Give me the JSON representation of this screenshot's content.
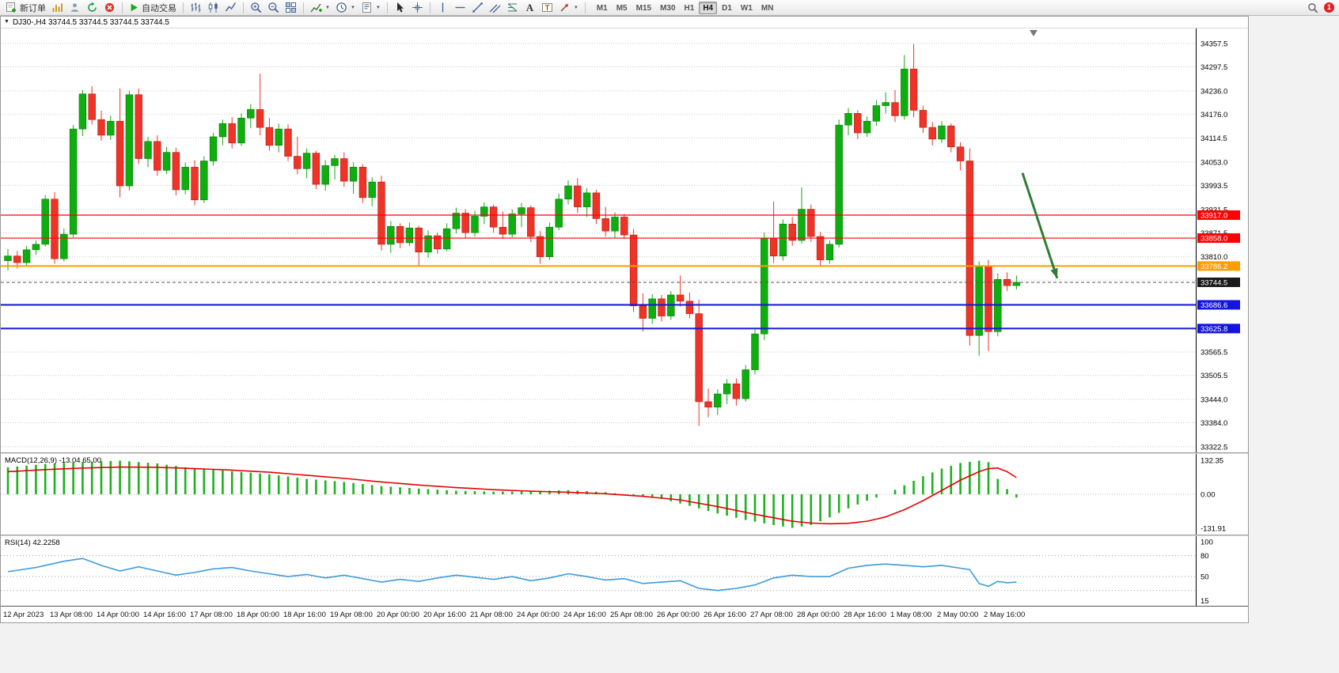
{
  "window": {
    "notification_count": "1"
  },
  "toolbar": {
    "new_order": "新订单",
    "auto_trading": "自动交易",
    "timeframes": [
      "M1",
      "M5",
      "M15",
      "M30",
      "H1",
      "H4",
      "D1",
      "W1",
      "MN"
    ],
    "active_timeframe": "H4"
  },
  "icons": {
    "text_tool": "A",
    "label_tool": "T"
  },
  "chart": {
    "header": "DJ30-,H4  33744.5 33744.5 33744.5 33744.5"
  },
  "chart_data": [
    {
      "type": "candlestick",
      "symbol": "DJ30-",
      "period": "H4",
      "title": "DJ30-,H4",
      "ylim": [
        33308,
        34396
      ],
      "y_ticks": [
        34357.5,
        34297.5,
        34236.0,
        34176.0,
        34114.5,
        34053.0,
        33993.5,
        33931.5,
        33871.5,
        33810.0,
        33750.0,
        33688.5,
        33627.0,
        33565.5,
        33505.5,
        33444.0,
        33384.0,
        33322.5
      ],
      "colors": {
        "up": "#0fae0f",
        "up_dark": "#077707",
        "down": "#ef3327",
        "down_dark": "#a81f16"
      },
      "hlines": [
        {
          "price": 33917.0,
          "label": "33917.0",
          "color": "#ff0000",
          "width": 1.2
        },
        {
          "price": 33858.0,
          "label": "33858.0",
          "color": "#ff0000",
          "width": 1.2
        },
        {
          "price": 33786.2,
          "label": "33786.2",
          "color": "#ff9d00",
          "width": 2
        },
        {
          "price": 33686.6,
          "label": "33686.6",
          "color": "#1414e0",
          "width": 2
        },
        {
          "price": 33625.8,
          "label": "33625.8",
          "color": "#1414e0",
          "width": 2
        }
      ],
      "current_price": {
        "price": 33744.5,
        "label": "33744.5",
        "color": "#1a1a1a"
      },
      "arrow_object": {
        "x1_frac": 0.855,
        "price1": 34025,
        "x2_frac": 0.884,
        "price2": 33755,
        "color": "#2e7d32"
      },
      "time_labels": [
        "12 Apr 2023",
        "13 Apr 08:00",
        "14 Apr 00:00",
        "14 Apr 16:00",
        "17 Apr 08:00",
        "18 Apr 00:00",
        "18 Apr 16:00",
        "19 Apr 08:00",
        "20 Apr 00:00",
        "20 Apr 16:00",
        "21 Apr 08:00",
        "24 Apr 00:00",
        "24 Apr 16:00",
        "25 Apr 08:00",
        "26 Apr 00:00",
        "26 Apr 16:00",
        "27 Apr 08:00",
        "28 Apr 00:00",
        "28 Apr 16:00",
        "1 May 08:00",
        "2 May 00:00",
        "2 May 16:00"
      ],
      "label_step": 5,
      "ohlc": [
        [
          33800,
          33830,
          33775,
          33812
        ],
        [
          33812,
          33825,
          33780,
          33795
        ],
        [
          33795,
          33838,
          33788,
          33828
        ],
        [
          33828,
          33852,
          33815,
          33842
        ],
        [
          33842,
          33968,
          33836,
          33958
        ],
        [
          33958,
          33976,
          33792,
          33805
        ],
        [
          33805,
          33882,
          33798,
          33868
        ],
        [
          33868,
          34148,
          33860,
          34138
        ],
        [
          34138,
          34238,
          34120,
          34228
        ],
        [
          34228,
          34248,
          34150,
          34162
        ],
        [
          34162,
          34185,
          34108,
          34122
        ],
        [
          34122,
          34172,
          34110,
          34158
        ],
        [
          34158,
          34242,
          33962,
          33992
        ],
        [
          33992,
          34236,
          33980,
          34226
        ],
        [
          34226,
          34242,
          34048,
          34062
        ],
        [
          34062,
          34118,
          34040,
          34106
        ],
        [
          34106,
          34122,
          34018,
          34032
        ],
        [
          34032,
          34092,
          34022,
          34078
        ],
        [
          34078,
          34090,
          33968,
          33982
        ],
        [
          33982,
          34052,
          33970,
          34040
        ],
        [
          34040,
          34058,
          33942,
          33956
        ],
        [
          33956,
          34068,
          33948,
          34056
        ],
        [
          34056,
          34128,
          34044,
          34118
        ],
        [
          34118,
          34162,
          34096,
          34152
        ],
        [
          34152,
          34168,
          34088,
          34102
        ],
        [
          34102,
          34178,
          34094,
          34166
        ],
        [
          34166,
          34202,
          34140,
          34188
        ],
        [
          34188,
          34280,
          34122,
          34142
        ],
        [
          34142,
          34166,
          34082,
          34096
        ],
        [
          34096,
          34152,
          34078,
          34138
        ],
        [
          34138,
          34150,
          34056,
          34068
        ],
        [
          34068,
          34118,
          34022,
          34036
        ],
        [
          34036,
          34088,
          34012,
          34076
        ],
        [
          34076,
          34082,
          33984,
          33996
        ],
        [
          33996,
          34058,
          33980,
          34044
        ],
        [
          34044,
          34072,
          34008,
          34062
        ],
        [
          34062,
          34078,
          33990,
          34004
        ],
        [
          34004,
          34052,
          33972,
          34040
        ],
        [
          34040,
          34048,
          33948,
          33962
        ],
        [
          33962,
          34014,
          33940,
          34002
        ],
        [
          34002,
          34018,
          33826,
          33842
        ],
        [
          33842,
          33902,
          33820,
          33888
        ],
        [
          33888,
          33896,
          33832,
          33846
        ],
        [
          33846,
          33898,
          33838,
          33884
        ],
        [
          33884,
          33890,
          33786,
          33822
        ],
        [
          33822,
          33878,
          33808,
          33864
        ],
        [
          33864,
          33872,
          33818,
          33830
        ],
        [
          33830,
          33896,
          33824,
          33882
        ],
        [
          33882,
          33936,
          33870,
          33922
        ],
        [
          33922,
          33932,
          33858,
          33872
        ],
        [
          33872,
          33928,
          33862,
          33914
        ],
        [
          33914,
          33950,
          33894,
          33938
        ],
        [
          33938,
          33944,
          33872,
          33886
        ],
        [
          33886,
          33926,
          33856,
          33868
        ],
        [
          33868,
          33932,
          33860,
          33920
        ],
        [
          33920,
          33948,
          33886,
          33936
        ],
        [
          33936,
          33942,
          33848,
          33862
        ],
        [
          33862,
          33876,
          33792,
          33810
        ],
        [
          33810,
          33898,
          33802,
          33886
        ],
        [
          33886,
          33972,
          33878,
          33958
        ],
        [
          33958,
          34006,
          33944,
          33992
        ],
        [
          33992,
          34012,
          33922,
          33938
        ],
        [
          33938,
          33986,
          33912,
          33974
        ],
        [
          33974,
          33982,
          33894,
          33908
        ],
        [
          33908,
          33938,
          33862,
          33876
        ],
        [
          33876,
          33924,
          33858,
          33912
        ],
        [
          33912,
          33920,
          33856,
          33866
        ],
        [
          33866,
          33882,
          33668,
          33684
        ],
        [
          33684,
          33716,
          33618,
          33652
        ],
        [
          33652,
          33714,
          33638,
          33702
        ],
        [
          33702,
          33712,
          33644,
          33658
        ],
        [
          33658,
          33722,
          33648,
          33712
        ],
        [
          33712,
          33762,
          33682,
          33696
        ],
        [
          33696,
          33718,
          33652,
          33664
        ],
        [
          33664,
          33700,
          33376,
          33438
        ],
        [
          33438,
          33472,
          33398,
          33424
        ],
        [
          33424,
          33470,
          33404,
          33458
        ],
        [
          33458,
          33496,
          33432,
          33484
        ],
        [
          33484,
          33498,
          33428,
          33446
        ],
        [
          33446,
          33532,
          33438,
          33520
        ],
        [
          33520,
          33624,
          33508,
          33612
        ],
        [
          33612,
          33872,
          33596,
          33858
        ],
        [
          33858,
          33952,
          33794,
          33812
        ],
        [
          33812,
          33906,
          33800,
          33894
        ],
        [
          33894,
          33912,
          33838,
          33852
        ],
        [
          33852,
          33988,
          33844,
          33932
        ],
        [
          33932,
          33944,
          33848,
          33862
        ],
        [
          33862,
          33874,
          33788,
          33802
        ],
        [
          33802,
          33852,
          33792,
          33842
        ],
        [
          33842,
          34162,
          33834,
          34148
        ],
        [
          34148,
          34192,
          34122,
          34178
        ],
        [
          34178,
          34186,
          34112,
          34128
        ],
        [
          34128,
          34170,
          34118,
          34158
        ],
        [
          34158,
          34212,
          34146,
          34198
        ],
        [
          34198,
          34232,
          34178,
          34206
        ],
        [
          34206,
          34238,
          34156,
          34172
        ],
        [
          34172,
          34328,
          34162,
          34292
        ],
        [
          34292,
          34356,
          34168,
          34186
        ],
        [
          34186,
          34198,
          34128,
          34142
        ],
        [
          34142,
          34156,
          34096,
          34112
        ],
        [
          34112,
          34158,
          34102,
          34146
        ],
        [
          34146,
          34152,
          34078,
          34092
        ],
        [
          34092,
          34104,
          34032,
          34056
        ],
        [
          34056,
          34088,
          33582,
          33608
        ],
        [
          33608,
          33798,
          33556,
          33786
        ],
        [
          33786,
          33802,
          33568,
          33618
        ],
        [
          33618,
          33768,
          33606,
          33752
        ],
        [
          33752,
          33770,
          33722,
          33736
        ],
        [
          33736,
          33762,
          33726,
          33744.5
        ]
      ]
    },
    {
      "type": "bar",
      "title": "MACD(12,26,9) -13.04 65.00",
      "ylim": [
        -157,
        157
      ],
      "scale_values": [
        132.35,
        0,
        -131.91
      ],
      "colors": {
        "histogram": "#1db11d",
        "signal": "#e40000"
      },
      "histogram_points": [
        [
          0,
          105
        ],
        [
          4,
          118
        ],
        [
          8,
          126
        ],
        [
          12,
          131
        ],
        [
          16,
          120
        ],
        [
          20,
          100
        ],
        [
          24,
          90
        ],
        [
          28,
          78
        ],
        [
          32,
          60
        ],
        [
          36,
          48
        ],
        [
          40,
          32
        ],
        [
          44,
          22
        ],
        [
          48,
          14
        ],
        [
          52,
          10
        ],
        [
          56,
          12
        ],
        [
          60,
          16
        ],
        [
          64,
          8
        ],
        [
          67,
          -4
        ],
        [
          70,
          -18
        ],
        [
          73,
          -45
        ],
        [
          76,
          -75
        ],
        [
          79,
          -100
        ],
        [
          82,
          -120
        ],
        [
          84,
          -131
        ],
        [
          86,
          -120
        ],
        [
          88,
          -90
        ],
        [
          90,
          -55
        ],
        [
          92,
          -25
        ],
        [
          94,
          0
        ],
        [
          96,
          35
        ],
        [
          98,
          70
        ],
        [
          100,
          100
        ],
        [
          102,
          122
        ],
        [
          104,
          131
        ],
        [
          105,
          125
        ],
        [
          106,
          60
        ],
        [
          107,
          20
        ],
        [
          108,
          -13
        ]
      ],
      "signal_points": [
        [
          0,
          88
        ],
        [
          4,
          96
        ],
        [
          8,
          102
        ],
        [
          12,
          106
        ],
        [
          16,
          105
        ],
        [
          20,
          100
        ],
        [
          24,
          94
        ],
        [
          28,
          86
        ],
        [
          32,
          74
        ],
        [
          36,
          62
        ],
        [
          40,
          48
        ],
        [
          44,
          36
        ],
        [
          48,
          26
        ],
        [
          52,
          18
        ],
        [
          56,
          12
        ],
        [
          60,
          8
        ],
        [
          64,
          2
        ],
        [
          68,
          -8
        ],
        [
          72,
          -22
        ],
        [
          76,
          -48
        ],
        [
          80,
          -78
        ],
        [
          84,
          -105
        ],
        [
          86,
          -112
        ],
        [
          88,
          -115
        ],
        [
          90,
          -113
        ],
        [
          92,
          -105
        ],
        [
          94,
          -88
        ],
        [
          96,
          -60
        ],
        [
          98,
          -25
        ],
        [
          100,
          15
        ],
        [
          102,
          55
        ],
        [
          104,
          88
        ],
        [
          105,
          100
        ],
        [
          106,
          102
        ],
        [
          107,
          88
        ],
        [
          108,
          65
        ]
      ]
    },
    {
      "type": "line",
      "title": "RSI(14) 42.2258",
      "ylim": [
        8,
        108
      ],
      "scale_values": [
        100,
        80,
        50,
        15
      ],
      "levels": [
        80,
        50,
        30
      ],
      "colors": {
        "line": "#3d9bdc",
        "level": "#9a9a9a"
      },
      "points": [
        [
          0,
          57
        ],
        [
          3,
          63
        ],
        [
          6,
          72
        ],
        [
          8,
          76
        ],
        [
          10,
          66
        ],
        [
          12,
          58
        ],
        [
          14,
          64
        ],
        [
          16,
          58
        ],
        [
          18,
          52
        ],
        [
          20,
          56
        ],
        [
          22,
          61
        ],
        [
          24,
          63
        ],
        [
          26,
          58
        ],
        [
          28,
          54
        ],
        [
          30,
          50
        ],
        [
          32,
          53
        ],
        [
          34,
          48
        ],
        [
          36,
          52
        ],
        [
          38,
          47
        ],
        [
          40,
          42
        ],
        [
          42,
          46
        ],
        [
          44,
          43
        ],
        [
          46,
          48
        ],
        [
          48,
          52
        ],
        [
          50,
          49
        ],
        [
          52,
          46
        ],
        [
          54,
          50
        ],
        [
          56,
          44
        ],
        [
          58,
          48
        ],
        [
          60,
          54
        ],
        [
          62,
          50
        ],
        [
          64,
          45
        ],
        [
          66,
          47
        ],
        [
          68,
          40
        ],
        [
          70,
          42
        ],
        [
          72,
          44
        ],
        [
          74,
          33
        ],
        [
          76,
          30
        ],
        [
          78,
          33
        ],
        [
          80,
          38
        ],
        [
          82,
          48
        ],
        [
          84,
          52
        ],
        [
          86,
          50
        ],
        [
          88,
          50
        ],
        [
          90,
          62
        ],
        [
          92,
          66
        ],
        [
          94,
          68
        ],
        [
          96,
          66
        ],
        [
          98,
          64
        ],
        [
          100,
          66
        ],
        [
          102,
          62
        ],
        [
          103,
          60
        ],
        [
          104,
          40
        ],
        [
          105,
          36
        ],
        [
          106,
          43
        ],
        [
          107,
          41
        ],
        [
          108,
          42
        ]
      ]
    }
  ]
}
